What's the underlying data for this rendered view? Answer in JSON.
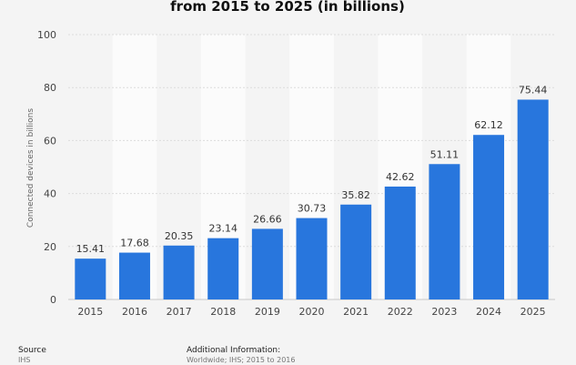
{
  "chart_data": {
    "type": "bar",
    "title": "from 2015 to 2025 (in billions)",
    "ylabel": "Connected devices in billions",
    "xlabel": "",
    "categories": [
      "2015",
      "2016",
      "2017",
      "2018",
      "2019",
      "2020",
      "2021",
      "2022",
      "2023",
      "2024",
      "2025"
    ],
    "values": [
      15.41,
      17.68,
      20.35,
      23.14,
      26.66,
      30.73,
      35.82,
      42.62,
      51.11,
      62.12,
      75.44
    ],
    "data_labels": [
      "15.41",
      "17.68",
      "20.35",
      "23.14",
      "26.66",
      "30.73",
      "35.82",
      "42.62",
      "51.11",
      "62.12",
      "75.44"
    ],
    "ylim": [
      0,
      100
    ],
    "yticks": [
      0,
      20,
      40,
      60,
      80,
      100
    ],
    "ytick_labels": [
      "0",
      "20",
      "40",
      "60",
      "80",
      "100"
    ],
    "grid": true,
    "bar_color": "#2876dd"
  },
  "footer": {
    "source_heading": "Source",
    "source_text": "IHS",
    "info_heading": "Additional Information:",
    "info_text": "Worldwide; IHS; 2015 to 2016"
  }
}
